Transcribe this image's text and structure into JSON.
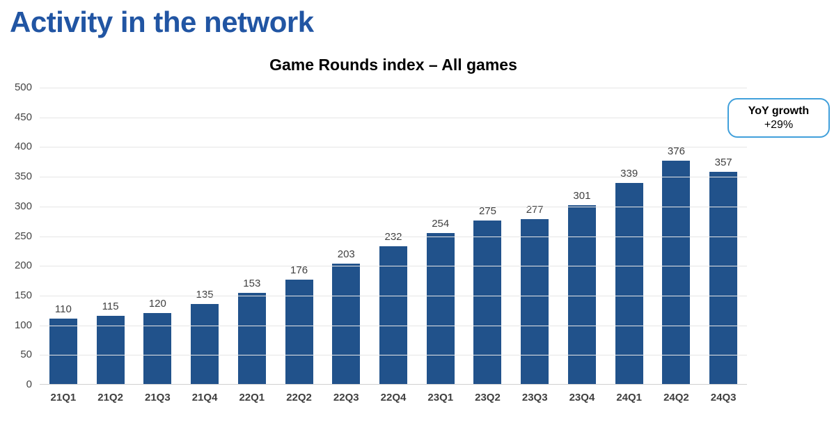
{
  "page_title": "Activity in the network",
  "chart_data": {
    "type": "bar",
    "title": "Game Rounds index – All games",
    "categories": [
      "21Q1",
      "21Q2",
      "21Q3",
      "21Q4",
      "22Q1",
      "22Q2",
      "22Q3",
      "22Q4",
      "23Q1",
      "23Q2",
      "23Q3",
      "23Q4",
      "24Q1",
      "24Q2",
      "24Q3"
    ],
    "values": [
      110,
      115,
      120,
      135,
      153,
      176,
      203,
      232,
      254,
      275,
      277,
      301,
      339,
      376,
      357
    ],
    "xlabel": "",
    "ylabel": "",
    "ylim": [
      0,
      500
    ],
    "ytick_step": 50,
    "grid": true,
    "legend": "none",
    "data_labels": true
  },
  "annotation": {
    "line1": "YoY growth",
    "line2": "+29%"
  },
  "colors": {
    "page_title": "#2155A3",
    "bar": "#21528B",
    "callout_border": "#41A0DB"
  }
}
